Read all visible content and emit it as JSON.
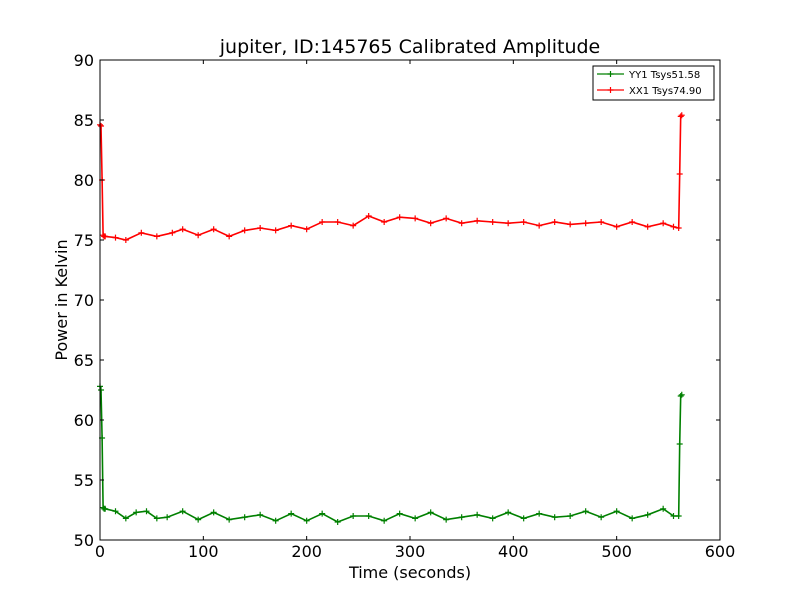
{
  "chart_data": {
    "type": "line",
    "title": "jupiter, ID:145765 Calibrated Amplitude",
    "xlabel": "Time (seconds)",
    "ylabel": "Power in Kelvin",
    "xlim": [
      0,
      600
    ],
    "ylim": [
      50,
      90
    ],
    "xticks": [
      0,
      100,
      200,
      300,
      400,
      500,
      600
    ],
    "yticks": [
      50,
      55,
      60,
      65,
      70,
      75,
      80,
      85,
      90
    ],
    "grid": false,
    "legend_position": "top-right",
    "series": [
      {
        "name": "YY1 Tsys51.58",
        "color": "#008000",
        "x": [
          0,
          1,
          2,
          3,
          4,
          5,
          15,
          25,
          35,
          45,
          55,
          65,
          80,
          95,
          110,
          125,
          140,
          155,
          170,
          185,
          200,
          215,
          230,
          245,
          260,
          275,
          290,
          305,
          320,
          335,
          350,
          365,
          380,
          395,
          410,
          425,
          440,
          455,
          470,
          485,
          500,
          515,
          530,
          545,
          555,
          560,
          561,
          562,
          563
        ],
        "values": [
          62.8,
          62.5,
          58.5,
          52.7,
          52.6,
          52.6,
          52.4,
          51.8,
          52.3,
          52.4,
          51.8,
          51.9,
          52.4,
          51.7,
          52.3,
          51.7,
          51.9,
          52.1,
          51.6,
          52.2,
          51.6,
          52.2,
          51.5,
          52.0,
          52.0,
          51.6,
          52.2,
          51.8,
          52.3,
          51.7,
          51.9,
          52.1,
          51.8,
          52.3,
          51.8,
          52.2,
          51.9,
          52.0,
          52.4,
          51.9,
          52.4,
          51.8,
          52.1,
          52.6,
          52.0,
          52.0,
          58.0,
          62.0,
          62.1
        ]
      },
      {
        "name": "XX1 Tsys74.90",
        "color": "#ff0000",
        "x": [
          0,
          1,
          2,
          3,
          4,
          5,
          15,
          25,
          40,
          55,
          70,
          80,
          95,
          110,
          125,
          140,
          155,
          170,
          185,
          200,
          215,
          230,
          245,
          260,
          275,
          290,
          305,
          320,
          335,
          350,
          365,
          380,
          395,
          410,
          425,
          440,
          455,
          470,
          485,
          500,
          515,
          530,
          545,
          555,
          560,
          561,
          562,
          563
        ],
        "values": [
          84.6,
          84.5,
          80.0,
          75.4,
          75.3,
          75.3,
          75.2,
          75.0,
          75.6,
          75.3,
          75.6,
          75.9,
          75.4,
          75.9,
          75.3,
          75.8,
          76.0,
          75.8,
          76.2,
          75.9,
          76.5,
          76.5,
          76.2,
          77.0,
          76.5,
          76.9,
          76.8,
          76.4,
          76.8,
          76.4,
          76.6,
          76.5,
          76.4,
          76.5,
          76.2,
          76.5,
          76.3,
          76.4,
          76.5,
          76.1,
          76.5,
          76.1,
          76.4,
          76.1,
          76.0,
          80.5,
          85.3,
          85.4
        ]
      }
    ]
  }
}
